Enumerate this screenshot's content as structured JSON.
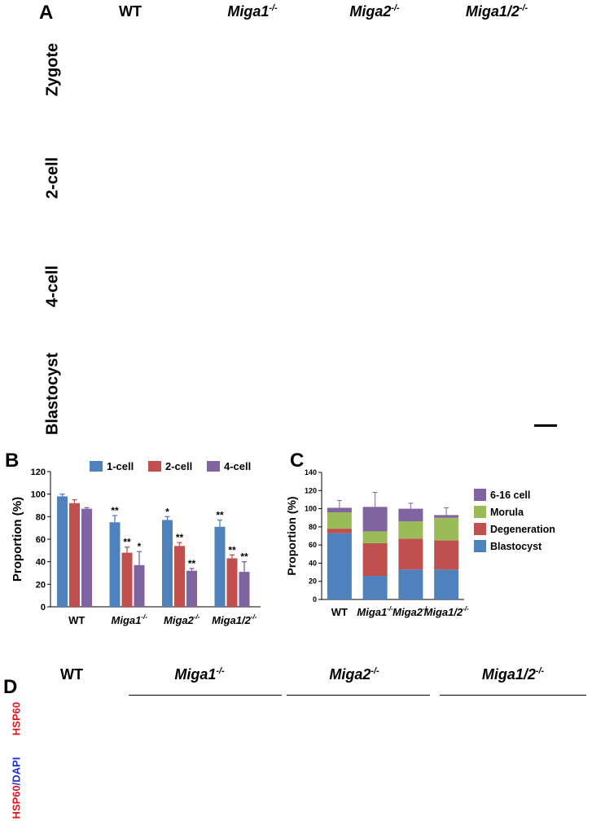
{
  "panels": {
    "A": "A",
    "B": "B",
    "C": "C",
    "D": "D"
  },
  "panel_a": {
    "columns": [
      "WT",
      "Miga1",
      "Miga2",
      "Miga1/2"
    ],
    "columns_sup": [
      "",
      "-/-",
      "-/-",
      "-/-"
    ],
    "rows": [
      "Zygote",
      "2-cell",
      "4-cell",
      "Blastocyst"
    ]
  },
  "chart_data": [
    {
      "type": "bar",
      "panel": "B",
      "categories": [
        "WT",
        "Miga1-/-",
        "Miga2-/-",
        "Miga1/2-/-"
      ],
      "series": [
        {
          "name": "1-cell",
          "values": [
            98,
            75,
            77,
            71
          ],
          "errors": [
            2,
            6,
            3,
            6
          ],
          "stars": [
            "",
            "**",
            "*",
            "**"
          ]
        },
        {
          "name": "2-cell",
          "values": [
            92,
            48,
            54,
            43
          ],
          "errors": [
            3,
            5,
            3,
            3
          ],
          "stars": [
            "",
            "**",
            "**",
            "**"
          ]
        },
        {
          "name": "4-cell",
          "values": [
            87,
            37,
            32,
            31
          ],
          "errors": [
            1,
            12,
            2,
            9
          ],
          "stars": [
            "",
            "*",
            "**",
            "**"
          ]
        }
      ],
      "colors": [
        "#4f81bd",
        "#c0504d",
        "#8064a2"
      ],
      "ylabel": "Proportion (%)",
      "ylim": [
        0,
        120
      ],
      "yticks": [
        0,
        20,
        40,
        60,
        80,
        100,
        120
      ],
      "legend_placement": "top"
    },
    {
      "type": "bar",
      "stacked": true,
      "panel": "C",
      "categories": [
        "WT",
        "Miga1-/-",
        "Miga2-/-",
        "Miga1/2-/-"
      ],
      "series": [
        {
          "name": "Blastocyst",
          "values": [
            73,
            26,
            33,
            33
          ],
          "errors": [
            3,
            5,
            7,
            14
          ]
        },
        {
          "name": "Degeneration",
          "values": [
            5,
            36,
            34,
            32
          ],
          "errors": [
            3,
            5,
            4,
            20
          ]
        },
        {
          "name": "Morula",
          "values": [
            18,
            13,
            19,
            25
          ],
          "errors": [
            0,
            5,
            0,
            0
          ]
        },
        {
          "name": "6-16 cell",
          "values": [
            5,
            27,
            14,
            3
          ],
          "errors": [
            8,
            16,
            6,
            8
          ]
        }
      ],
      "colors": [
        "#4f81bd",
        "#c0504d",
        "#9bbb59",
        "#8064a2"
      ],
      "legend_order": [
        "6-16 cell",
        "Morula",
        "Degeneration",
        "Blastocyst"
      ],
      "ylabel": "Proportion (%)",
      "ylim": [
        0,
        140
      ],
      "yticks": [
        0,
        20,
        40,
        60,
        80,
        100,
        120,
        140
      ],
      "legend_placement": "right"
    }
  ],
  "panel_d": {
    "columns": [
      "WT",
      "Miga1",
      "Miga2",
      "Miga1/2"
    ],
    "columns_sup": [
      "",
      "-/-",
      "-/-",
      "-/-"
    ],
    "row1_label": "HSP60",
    "row2_label_a": "HSP60",
    "row2_label_b": "/DAPI"
  }
}
